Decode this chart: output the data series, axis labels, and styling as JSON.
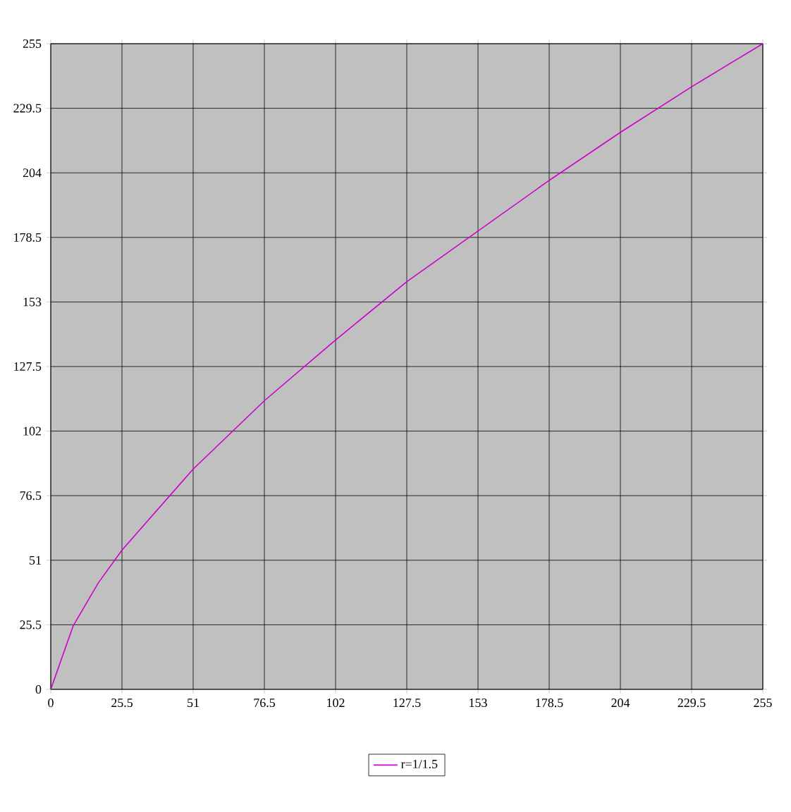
{
  "chart_data": {
    "type": "line",
    "x": [
      0,
      8,
      17,
      25.5,
      51,
      76.5,
      102,
      127.5,
      153,
      178.5,
      204,
      229.5,
      255
    ],
    "series": [
      {
        "name": "r=1/1.5",
        "color": "#cc00cc",
        "values": [
          0,
          25,
          42,
          55,
          87,
          114,
          138,
          161,
          181,
          201,
          220,
          238,
          255
        ]
      }
    ],
    "xlim": [
      0,
      255
    ],
    "ylim": [
      0,
      255
    ],
    "xticks": [
      0,
      25.5,
      51,
      76.5,
      102,
      127.5,
      153,
      178.5,
      204,
      229.5,
      255
    ],
    "yticks": [
      0,
      25.5,
      51,
      76.5,
      102,
      127.5,
      153,
      178.5,
      204,
      229.5,
      255
    ],
    "grid": true,
    "legend": "bottom",
    "marker": "none",
    "line_style": "solid"
  }
}
